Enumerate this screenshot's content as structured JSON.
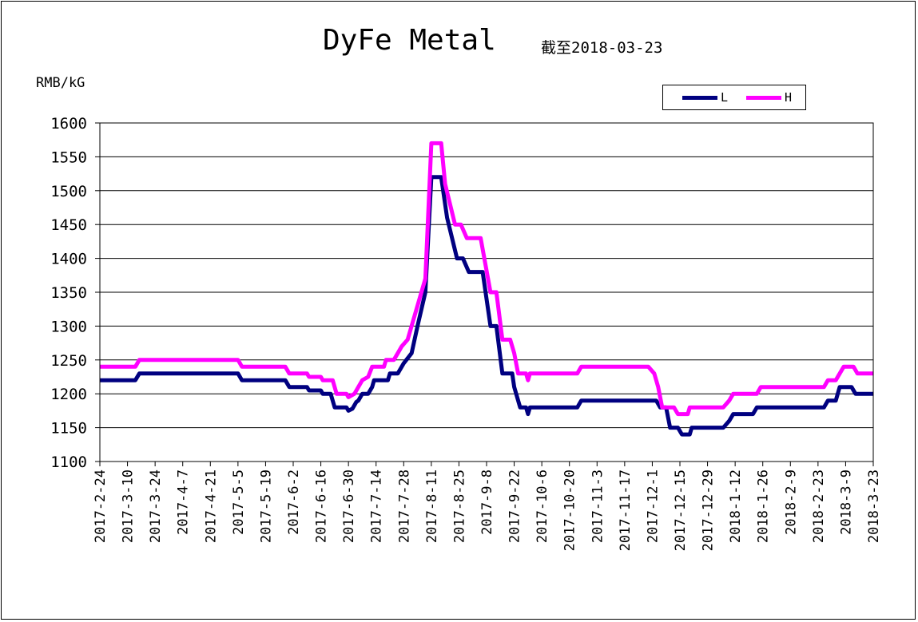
{
  "chart_data": {
    "type": "line",
    "title": "DyFe Metal",
    "subtitle": "截至2018-03-23",
    "ylabel": "RMB/kG",
    "ylim": [
      1100,
      1600
    ],
    "yticks": [
      1100,
      1150,
      1200,
      1250,
      1300,
      1350,
      1400,
      1450,
      1500,
      1550,
      1600
    ],
    "grid": true,
    "legend_position": "top-right",
    "x_tick_labels": [
      "2017-2-24",
      "2017-3-10",
      "2017-3-24",
      "2017-4-7",
      "2017-4-21",
      "2017-5-5",
      "2017-5-19",
      "2017-6-2",
      "2017-6-16",
      "2017-6-30",
      "2017-7-14",
      "2017-7-28",
      "2017-8-11",
      "2017-8-25",
      "2017-9-8",
      "2017-9-22",
      "2017-10-6",
      "2017-10-20",
      "2017-11-3",
      "2017-11-17",
      "2017-12-1",
      "2017-12-15",
      "2017-12-29",
      "2018-1-12",
      "2018-1-26",
      "2018-2-9",
      "2018-2-23",
      "2018-3-9",
      "2018-3-23"
    ],
    "series": [
      {
        "name": "L",
        "color": "#000080",
        "points": [
          [
            "2017-2-24",
            1220
          ],
          [
            "2017-3-14",
            1220
          ],
          [
            "2017-3-16",
            1230
          ],
          [
            "2017-5-5",
            1230
          ],
          [
            "2017-5-7",
            1220
          ],
          [
            "2017-5-29",
            1220
          ],
          [
            "2017-5-31",
            1210
          ],
          [
            "2017-6-9",
            1210
          ],
          [
            "2017-6-10",
            1205
          ],
          [
            "2017-6-16",
            1205
          ],
          [
            "2017-6-17",
            1200
          ],
          [
            "2017-6-21",
            1200
          ],
          [
            "2017-6-23",
            1180
          ],
          [
            "2017-6-29",
            1180
          ],
          [
            "2017-6-30",
            1175
          ],
          [
            "2017-7-2",
            1178
          ],
          [
            "2017-7-4",
            1188
          ],
          [
            "2017-7-5",
            1190
          ],
          [
            "2017-7-7",
            1200
          ],
          [
            "2017-7-10",
            1200
          ],
          [
            "2017-7-12",
            1210
          ],
          [
            "2017-7-13",
            1220
          ],
          [
            "2017-7-20",
            1220
          ],
          [
            "2017-7-21",
            1230
          ],
          [
            "2017-7-25",
            1230
          ],
          [
            "2017-7-28",
            1245
          ],
          [
            "2017-8-1",
            1260
          ],
          [
            "2017-8-4",
            1300
          ],
          [
            "2017-8-8",
            1350
          ],
          [
            "2017-8-11",
            1520
          ],
          [
            "2017-8-16",
            1520
          ],
          [
            "2017-8-19",
            1460
          ],
          [
            "2017-8-24",
            1400
          ],
          [
            "2017-8-27",
            1400
          ],
          [
            "2017-8-30",
            1380
          ],
          [
            "2017-9-6",
            1380
          ],
          [
            "2017-9-10",
            1300
          ],
          [
            "2017-9-13",
            1300
          ],
          [
            "2017-9-16",
            1230
          ],
          [
            "2017-9-21",
            1230
          ],
          [
            "2017-9-22",
            1210
          ],
          [
            "2017-9-25",
            1180
          ],
          [
            "2017-9-28",
            1180
          ],
          [
            "2017-9-29",
            1170
          ],
          [
            "2017-9-30",
            1180
          ],
          [
            "2017-10-24",
            1180
          ],
          [
            "2017-10-26",
            1190
          ],
          [
            "2017-12-3",
            1190
          ],
          [
            "2017-12-5",
            1180
          ],
          [
            "2017-12-8",
            1180
          ],
          [
            "2017-12-10",
            1150
          ],
          [
            "2017-12-14",
            1150
          ],
          [
            "2017-12-16",
            1140
          ],
          [
            "2017-12-20",
            1140
          ],
          [
            "2017-12-21",
            1150
          ],
          [
            "2018-1-6",
            1150
          ],
          [
            "2018-1-9",
            1160
          ],
          [
            "2018-1-11",
            1170
          ],
          [
            "2018-1-21",
            1170
          ],
          [
            "2018-1-23",
            1180
          ],
          [
            "2018-2-26",
            1180
          ],
          [
            "2018-2-28",
            1190
          ],
          [
            "2018-3-4",
            1190
          ],
          [
            "2018-3-6",
            1210
          ],
          [
            "2018-3-12",
            1210
          ],
          [
            "2018-3-14",
            1200
          ],
          [
            "2018-3-23",
            1200
          ]
        ]
      },
      {
        "name": "H",
        "color": "#ff00ff",
        "points": [
          [
            "2017-2-24",
            1240
          ],
          [
            "2017-3-14",
            1240
          ],
          [
            "2017-3-16",
            1250
          ],
          [
            "2017-5-5",
            1250
          ],
          [
            "2017-5-7",
            1240
          ],
          [
            "2017-5-29",
            1240
          ],
          [
            "2017-5-31",
            1230
          ],
          [
            "2017-6-9",
            1230
          ],
          [
            "2017-6-10",
            1225
          ],
          [
            "2017-6-16",
            1225
          ],
          [
            "2017-6-17",
            1220
          ],
          [
            "2017-6-22",
            1220
          ],
          [
            "2017-6-24",
            1200
          ],
          [
            "2017-6-29",
            1200
          ],
          [
            "2017-6-30",
            1195
          ],
          [
            "2017-7-3",
            1200
          ],
          [
            "2017-7-5",
            1210
          ],
          [
            "2017-7-7",
            1220
          ],
          [
            "2017-7-10",
            1225
          ],
          [
            "2017-7-12",
            1240
          ],
          [
            "2017-7-18",
            1240
          ],
          [
            "2017-7-19",
            1250
          ],
          [
            "2017-7-23",
            1250
          ],
          [
            "2017-7-25",
            1260
          ],
          [
            "2017-7-27",
            1270
          ],
          [
            "2017-7-30",
            1280
          ],
          [
            "2017-8-2",
            1310
          ],
          [
            "2017-8-5",
            1340
          ],
          [
            "2017-8-8",
            1370
          ],
          [
            "2017-8-11",
            1570
          ],
          [
            "2017-8-16",
            1570
          ],
          [
            "2017-8-18",
            1510
          ],
          [
            "2017-8-23",
            1450
          ],
          [
            "2017-8-26",
            1450
          ],
          [
            "2017-8-29",
            1430
          ],
          [
            "2017-9-5",
            1430
          ],
          [
            "2017-9-10",
            1350
          ],
          [
            "2017-9-13",
            1350
          ],
          [
            "2017-9-16",
            1280
          ],
          [
            "2017-9-20",
            1280
          ],
          [
            "2017-9-22",
            1260
          ],
          [
            "2017-9-24",
            1230
          ],
          [
            "2017-9-28",
            1230
          ],
          [
            "2017-9-29",
            1220
          ],
          [
            "2017-9-30",
            1230
          ],
          [
            "2017-10-24",
            1230
          ],
          [
            "2017-10-26",
            1240
          ],
          [
            "2017-11-29",
            1240
          ],
          [
            "2017-12-2",
            1230
          ],
          [
            "2017-12-4",
            1210
          ],
          [
            "2017-12-6",
            1180
          ],
          [
            "2017-12-12",
            1180
          ],
          [
            "2017-12-14",
            1170
          ],
          [
            "2017-12-19",
            1170
          ],
          [
            "2017-12-20",
            1180
          ],
          [
            "2018-1-6",
            1180
          ],
          [
            "2018-1-9",
            1190
          ],
          [
            "2018-1-11",
            1200
          ],
          [
            "2018-1-23",
            1200
          ],
          [
            "2018-1-25",
            1210
          ],
          [
            "2018-2-26",
            1210
          ],
          [
            "2018-2-28",
            1220
          ],
          [
            "2018-3-4",
            1220
          ],
          [
            "2018-3-8",
            1240
          ],
          [
            "2018-3-13",
            1240
          ],
          [
            "2018-3-15",
            1230
          ],
          [
            "2018-3-23",
            1230
          ]
        ]
      }
    ]
  }
}
